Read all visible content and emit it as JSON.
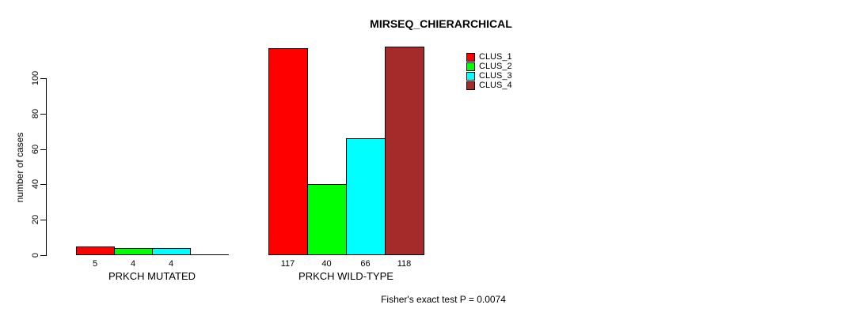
{
  "title": "MIRSEQ_CHIERARCHICAL",
  "annotation": "Fisher's exact test P = 0.0074",
  "chart_data": {
    "type": "bar",
    "title": "MIRSEQ_CHIERARCHICAL",
    "xlabel": "",
    "ylabel": "number of cases",
    "ylim": [
      0,
      100
    ],
    "yticks": [
      0,
      20,
      40,
      60,
      80,
      100
    ],
    "grid": false,
    "legend_position": "inside-top-right",
    "categories": [
      "PRKCH MUTATED",
      "PRKCH WILD-TYPE"
    ],
    "series": [
      {
        "name": "CLUS_1",
        "color": "#FF0000",
        "values": [
          5,
          117
        ]
      },
      {
        "name": "CLUS_2",
        "color": "#00FF00",
        "values": [
          4,
          40
        ]
      },
      {
        "name": "CLUS_3",
        "color": "#00FFFF",
        "values": [
          4,
          66
        ]
      },
      {
        "name": "CLUS_4",
        "color": "#A52A2A",
        "values": [
          0,
          118
        ]
      }
    ],
    "bar_labels": [
      [
        "5",
        "4",
        "4",
        ""
      ],
      [
        "117",
        "40",
        "66",
        "118"
      ]
    ],
    "annotation": "Fisher's exact test P = 0.0074"
  }
}
